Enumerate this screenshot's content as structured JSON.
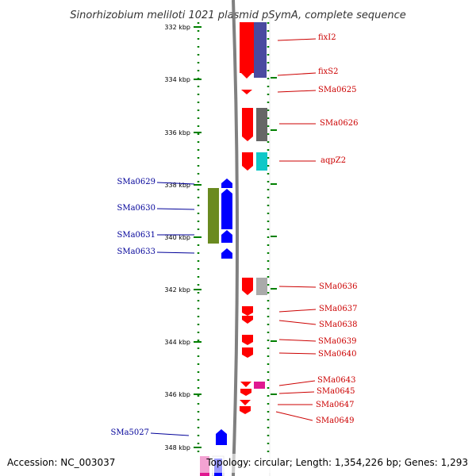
{
  "title": "Sinorhizobium meliloti 1021 plasmid pSymA, complete sequence",
  "footer": {
    "accession": "Accession: NC_003037",
    "topology": "Topology: circular; Length: 1,354,226 bp; Genes: 1,293"
  },
  "colors": {
    "forward_label": "#cc0000",
    "reverse_label": "#000099",
    "forward_gene": "#ff0000",
    "reverse_gene": "#0000ff",
    "backbone": "#808080",
    "tick": "#008000"
  },
  "ticks": [
    "332 kbp",
    "334 kbp",
    "336 kbp",
    "338 kbp",
    "340 kbp",
    "342 kbp",
    "344 kbp",
    "346 kbp",
    "348 kbp"
  ],
  "genes_right": [
    {
      "label": "fixI2"
    },
    {
      "label": "fixS2"
    },
    {
      "label": "SMa0625"
    },
    {
      "label": "SMa0626"
    },
    {
      "label": "aqpZ2"
    },
    {
      "label": "SMa0636"
    },
    {
      "label": "SMa0637"
    },
    {
      "label": "SMa0638"
    },
    {
      "label": "SMa0639"
    },
    {
      "label": "SMa0640"
    },
    {
      "label": "SMa0643"
    },
    {
      "label": "SMa0645"
    },
    {
      "label": "SMa0647"
    },
    {
      "label": "SMa0649"
    }
  ],
  "genes_left": [
    {
      "label": "SMa0629"
    },
    {
      "label": "SMa0630"
    },
    {
      "label": "SMa0631"
    },
    {
      "label": "SMa0633"
    },
    {
      "label": "SMa5027"
    }
  ],
  "feature_colors": {
    "cog_purple": "#4a4aa0",
    "cog_gray": "#666666",
    "cog_light_gray": "#aaaaaa",
    "cog_cyan": "#10c8c8",
    "cog_olive": "#6a8a20",
    "cog_pink": "#e01890"
  }
}
